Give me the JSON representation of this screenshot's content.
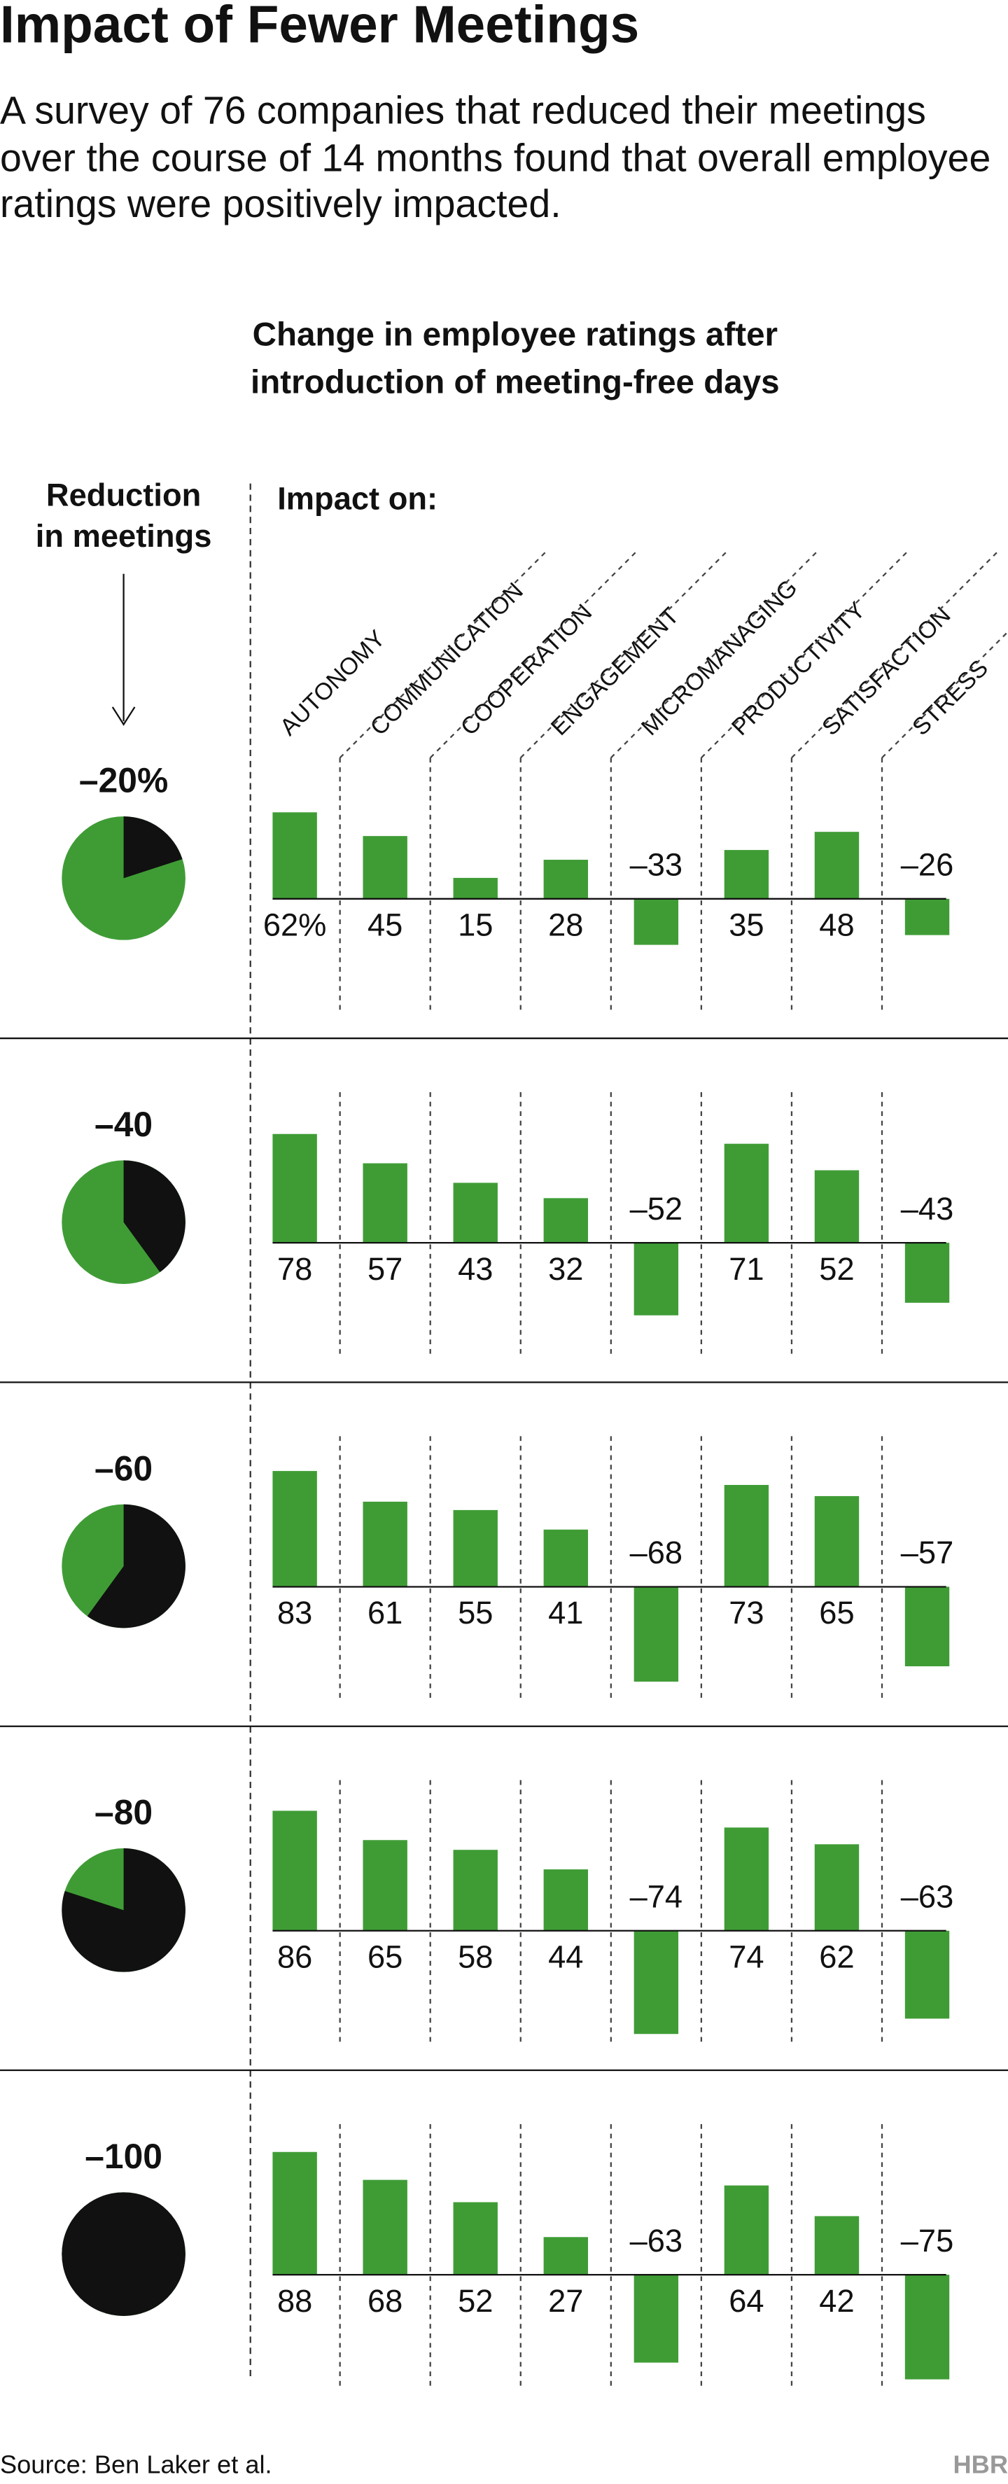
{
  "chart_data": {
    "type": "bar",
    "title": "Impact of Fewer Meetings",
    "subtitle": "A survey of 76 companies that reduced their meetings over the course of 14 months found that overall employee ratings were positively impacted.",
    "chart_title": "Change in employee ratings after introduction of meeting-free days",
    "row_header": "Reduction in meetings",
    "column_header": "Impact on:",
    "categories": [
      "AUTONOMY",
      "COMMUNICATION",
      "COOPERATION",
      "ENGAGEMENT",
      "MICROMANAGING",
      "PRODUCTIVITY",
      "SATISFACTION",
      "STRESS"
    ],
    "color": "#3f9c35",
    "pie_color": "#111111",
    "rows": [
      {
        "reduction": -20,
        "reduction_label": "–20%",
        "values": [
          62,
          45,
          15,
          28,
          -33,
          35,
          48,
          -26
        ],
        "value_labels": [
          "62%",
          "45",
          "15",
          "28",
          "–33",
          "35",
          "48",
          "–26"
        ]
      },
      {
        "reduction": -40,
        "reduction_label": "–40",
        "values": [
          78,
          57,
          43,
          32,
          -52,
          71,
          52,
          -43
        ],
        "value_labels": [
          "78",
          "57",
          "43",
          "32",
          "–52",
          "71",
          "52",
          "–43"
        ]
      },
      {
        "reduction": -60,
        "reduction_label": "–60",
        "values": [
          83,
          61,
          55,
          41,
          -68,
          73,
          65,
          -57
        ],
        "value_labels": [
          "83",
          "61",
          "55",
          "41",
          "–68",
          "73",
          "65",
          "–57"
        ]
      },
      {
        "reduction": -80,
        "reduction_label": "–80",
        "values": [
          86,
          65,
          58,
          44,
          -74,
          74,
          62,
          -63
        ],
        "value_labels": [
          "86",
          "65",
          "58",
          "44",
          "–74",
          "74",
          "62",
          "–63"
        ]
      },
      {
        "reduction": -100,
        "reduction_label": "–100",
        "values": [
          88,
          68,
          52,
          27,
          -63,
          64,
          42,
          -75
        ],
        "value_labels": [
          "88",
          "68",
          "52",
          "27",
          "–63",
          "64",
          "42",
          "–75"
        ]
      }
    ],
    "source": "Source: Ben Laker et al.",
    "brand": "HBR"
  }
}
